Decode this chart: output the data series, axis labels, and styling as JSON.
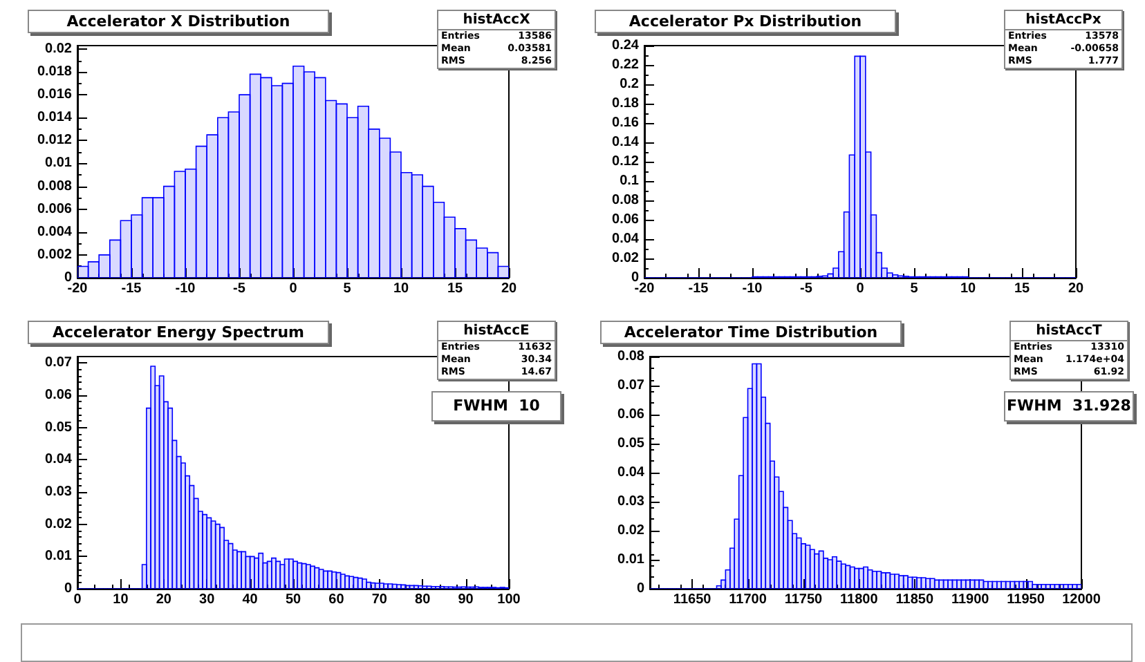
{
  "chart_data": [
    {
      "type": "histogram",
      "title": "Accelerator X Distribution",
      "color": "#0000ff",
      "grid": false,
      "annotations": [
        "histAccX",
        "Entries 13586",
        "Mean 0.03581",
        "RMS 8.256"
      ],
      "bins": [
        -20,
        -19,
        -18,
        -17,
        -16,
        -15,
        -14,
        -13,
        -12,
        -11,
        -10,
        -9,
        -8,
        -7,
        -6,
        -5,
        -4,
        -3,
        -2,
        -1,
        0,
        1,
        2,
        3,
        4,
        5,
        6,
        7,
        8,
        9,
        10,
        11,
        12,
        13,
        14,
        15,
        16,
        17,
        18,
        19,
        20
      ],
      "values": [
        0.001,
        0.0014,
        0.002,
        0.0033,
        0.005,
        0.0055,
        0.007,
        0.007,
        0.008,
        0.0093,
        0.0095,
        0.0115,
        0.0125,
        0.014,
        0.0145,
        0.016,
        0.0178,
        0.0175,
        0.0168,
        0.017,
        0.0185,
        0.018,
        0.0175,
        0.0155,
        0.0152,
        0.014,
        0.015,
        0.013,
        0.0122,
        0.011,
        0.0092,
        0.009,
        0.008,
        0.0066,
        0.0053,
        0.0043,
        0.0033,
        0.0026,
        0.0022,
        0.001
      ],
      "xlim": [
        -20,
        20
      ],
      "xticks": [
        -20,
        -15,
        -10,
        -5,
        0,
        5,
        10,
        15,
        20
      ],
      "ylim": [
        0,
        0.0203
      ],
      "yticks": [
        0,
        0.002,
        0.004,
        0.006,
        0.008,
        0.01,
        0.012,
        0.014,
        0.016,
        0.018,
        0.02
      ]
    },
    {
      "type": "histogram",
      "title": "Accelerator Px Distribution",
      "color": "#0000ff",
      "grid": false,
      "annotations": [
        "histAccPx",
        "Entries 13578",
        "Mean -0.00658",
        "RMS 1.777"
      ],
      "bins": [
        -20,
        -19.5,
        -19,
        -18.5,
        -18,
        -17.5,
        -17,
        -16.5,
        -16,
        -15.5,
        -15,
        -14.5,
        -14,
        -13.5,
        -13,
        -12.5,
        -12,
        -11.5,
        -11,
        -10.5,
        -10,
        -9.5,
        -9,
        -8.5,
        -8,
        -7.5,
        -7,
        -6.5,
        -6,
        -5.5,
        -5,
        -4.5,
        -4,
        -3.5,
        -3,
        -2.5,
        -2,
        -1.5,
        -1,
        -0.5,
        0,
        0.5,
        1,
        1.5,
        2,
        2.5,
        3,
        3.5,
        4,
        4.5,
        5,
        5.5,
        6,
        6.5,
        7,
        7.5,
        8,
        8.5,
        9,
        9.5,
        10,
        10.5,
        11,
        11.5,
        12,
        12.5,
        13,
        13.5,
        14,
        14.5,
        15,
        15.5,
        16,
        16.5,
        17,
        17.5,
        18,
        18.5,
        19,
        19.5,
        20
      ],
      "values": [
        0,
        0,
        0,
        0,
        0,
        0,
        0,
        0,
        0,
        0,
        0,
        0,
        0,
        0,
        0,
        0,
        0,
        0,
        0,
        0,
        0.001,
        0.001,
        0.001,
        0.001,
        0.001,
        0.001,
        0.001,
        0.001,
        0.001,
        0.001,
        0.001,
        0.001,
        0.0015,
        0.002,
        0.004,
        0.01,
        0.027,
        0.068,
        0.127,
        0.229,
        0.229,
        0.13,
        0.065,
        0.026,
        0.01,
        0.005,
        0.003,
        0.002,
        0.0015,
        0.001,
        0.001,
        0.001,
        0.001,
        0.001,
        0.001,
        0.001,
        0.001,
        0.001,
        0.001,
        0.001,
        0,
        0,
        0,
        0,
        0,
        0,
        0,
        0,
        0,
        0,
        0,
        0,
        0,
        0,
        0,
        0,
        0,
        0,
        0,
        0
      ],
      "xlim": [
        -20,
        20
      ],
      "xticks": [
        -20,
        -15,
        -10,
        -5,
        0,
        5,
        10,
        15,
        20
      ],
      "ylim": [
        0,
        0.24
      ],
      "yticks": [
        0,
        0.02,
        0.04,
        0.06,
        0.08,
        0.1,
        0.12,
        0.14,
        0.16,
        0.18,
        0.2,
        0.22,
        0.24
      ]
    },
    {
      "type": "histogram",
      "title": "Accelerator Energy Spectrum",
      "color": "#0000ff",
      "grid": false,
      "annotations": [
        "histAccE",
        "Entries 11632",
        "Mean 30.34",
        "RMS 14.67",
        "FWHM  10"
      ],
      "bins": [
        0,
        1,
        2,
        3,
        4,
        5,
        6,
        7,
        8,
        9,
        10,
        11,
        12,
        13,
        14,
        15,
        16,
        17,
        18,
        19,
        20,
        21,
        22,
        23,
        24,
        25,
        26,
        27,
        28,
        29,
        30,
        31,
        32,
        33,
        34,
        35,
        36,
        37,
        38,
        39,
        40,
        41,
        42,
        43,
        44,
        45,
        46,
        47,
        48,
        49,
        50,
        51,
        52,
        53,
        54,
        55,
        56,
        57,
        58,
        59,
        60,
        61,
        62,
        63,
        64,
        65,
        66,
        67,
        68,
        69,
        70,
        71,
        72,
        73,
        74,
        75,
        76,
        77,
        78,
        79,
        80,
        81,
        82,
        83,
        84,
        85,
        86,
        87,
        88,
        89,
        90,
        91,
        92,
        93,
        94,
        95,
        96,
        97,
        98,
        99,
        100
      ],
      "values": [
        0,
        0,
        0,
        0,
        0,
        0,
        0,
        0,
        0,
        0,
        0,
        0,
        0,
        0,
        0,
        0.0075,
        0.056,
        0.069,
        0.063,
        0.066,
        0.058,
        0.056,
        0.046,
        0.041,
        0.039,
        0.035,
        0.032,
        0.028,
        0.024,
        0.023,
        0.022,
        0.021,
        0.02,
        0.019,
        0.015,
        0.014,
        0.012,
        0.0115,
        0.0115,
        0.01,
        0.01,
        0.0095,
        0.011,
        0.008,
        0.0085,
        0.0095,
        0.0085,
        0.0075,
        0.0092,
        0.0092,
        0.0085,
        0.008,
        0.0078,
        0.0075,
        0.007,
        0.0065,
        0.006,
        0.0055,
        0.0055,
        0.0052,
        0.005,
        0.0045,
        0.004,
        0.0038,
        0.0035,
        0.0033,
        0.003,
        0.002,
        0.0018,
        0.0017,
        0.0017,
        0.0015,
        0.0015,
        0.0014,
        0.0013,
        0.0012,
        0.001,
        0.001,
        0.001,
        0.0009,
        0.0008,
        0.0008,
        0.0007,
        0.0007,
        0.0007,
        0.0006,
        0.0006,
        0.0005,
        0.0005,
        0.0006,
        0.0005,
        0.0005,
        0.0006,
        0.0004,
        0.0004,
        0.0004,
        0.0004,
        0.0003,
        0.0004,
        0.0003
      ],
      "xlim": [
        0,
        100
      ],
      "xticks": [
        0,
        10,
        20,
        30,
        40,
        50,
        60,
        70,
        80,
        90,
        100
      ],
      "ylim": [
        0,
        0.072
      ],
      "yticks": [
        0,
        0.01,
        0.02,
        0.03,
        0.04,
        0.05,
        0.06,
        0.07
      ]
    },
    {
      "type": "histogram",
      "title": "Accelerator Time Distribution",
      "color": "#0000ff",
      "grid": false,
      "annotations": [
        "histAccT",
        "Entries 13310",
        "Mean 1.174e+04",
        "RMS 61.92",
        "FWHM  31.928"
      ],
      "bins": [
        11612,
        11616,
        11620,
        11624,
        11628,
        11632,
        11636,
        11640,
        11644,
        11648,
        11652,
        11656,
        11660,
        11664,
        11668,
        11672,
        11676,
        11680,
        11684,
        11688,
        11692,
        11696,
        11700,
        11704,
        11708,
        11712,
        11716,
        11720,
        11724,
        11728,
        11732,
        11736,
        11740,
        11744,
        11748,
        11752,
        11756,
        11760,
        11764,
        11768,
        11772,
        11776,
        11780,
        11784,
        11788,
        11792,
        11796,
        11800,
        11804,
        11808,
        11812,
        11816,
        11820,
        11824,
        11828,
        11832,
        11836,
        11840,
        11844,
        11848,
        11852,
        11856,
        11860,
        11864,
        11868,
        11872,
        11876,
        11880,
        11884,
        11888,
        11892,
        11896,
        11900,
        11904,
        11908,
        11912,
        11916,
        11920,
        11924,
        11928,
        11932,
        11936,
        11940,
        11944,
        11948,
        11952,
        11956,
        11960,
        11964,
        11968,
        11972,
        11976,
        11980,
        11984,
        11988,
        11992,
        11996,
        12000
      ],
      "values": [
        0,
        0,
        0,
        0,
        0,
        0,
        0,
        0,
        0,
        0,
        0,
        0,
        0,
        0,
        0,
        0.001,
        0.003,
        0.0065,
        0.014,
        0.024,
        0.039,
        0.059,
        0.069,
        0.0775,
        0.0775,
        0.066,
        0.057,
        0.044,
        0.0385,
        0.0335,
        0.028,
        0.0235,
        0.019,
        0.0175,
        0.0155,
        0.015,
        0.0135,
        0.012,
        0.013,
        0.0105,
        0.01,
        0.011,
        0.0095,
        0.0085,
        0.008,
        0.0075,
        0.007,
        0.007,
        0.0075,
        0.0065,
        0.006,
        0.006,
        0.0055,
        0.0055,
        0.005,
        0.005,
        0.0045,
        0.0045,
        0.004,
        0.004,
        0.0038,
        0.0038,
        0.0035,
        0.0035,
        0.003,
        0.003,
        0.003,
        0.003,
        0.003,
        0.003,
        0.003,
        0.003,
        0.003,
        0.003,
        0.003,
        0.0025,
        0.0025,
        0.0025,
        0.0025,
        0.0025,
        0.0025,
        0.0025,
        0.0025,
        0.0025,
        0.0025,
        0.0025,
        0.0015,
        0.0015,
        0.0015,
        0.0015,
        0.0015,
        0.0015,
        0.0015,
        0.0015,
        0.0015,
        0.0015,
        0.0015
      ],
      "xlim": [
        11612,
        12000
      ],
      "xticks": [
        11650,
        11700,
        11750,
        11800,
        11850,
        11900,
        11950,
        12000
      ],
      "ylim": [
        0,
        0.08
      ],
      "yticks": [
        0,
        0.01,
        0.02,
        0.03,
        0.04,
        0.05,
        0.06,
        0.07,
        0.08
      ]
    }
  ]
}
